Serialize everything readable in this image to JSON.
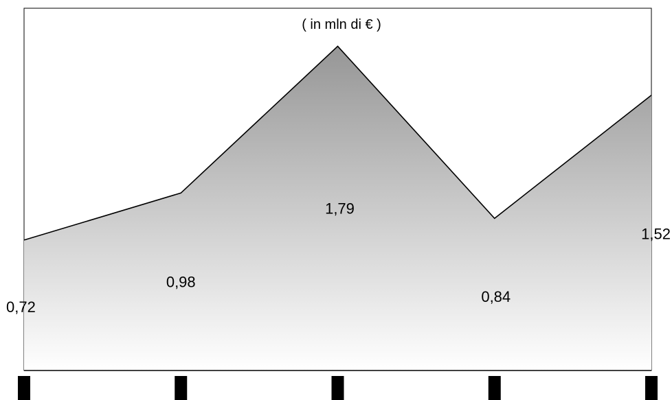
{
  "chart_data": {
    "type": "area",
    "subtitle": "( in mln di € )",
    "categories": [
      "",
      "",
      "",
      "",
      ""
    ],
    "series": [
      {
        "values": [
          0.72,
          0.98,
          1.79,
          0.84,
          1.52
        ]
      }
    ],
    "data_labels": [
      "0,72",
      "0,98",
      "1,79",
      "0,84",
      "1,52"
    ],
    "ylim": [
      0,
      2.0
    ],
    "grid": false,
    "legend": "none",
    "colors": {
      "fill_top": "#969696",
      "fill_bottom": "#ffffff",
      "line": "#000000",
      "frame": "#000000",
      "tick_marks": "#000000"
    }
  }
}
